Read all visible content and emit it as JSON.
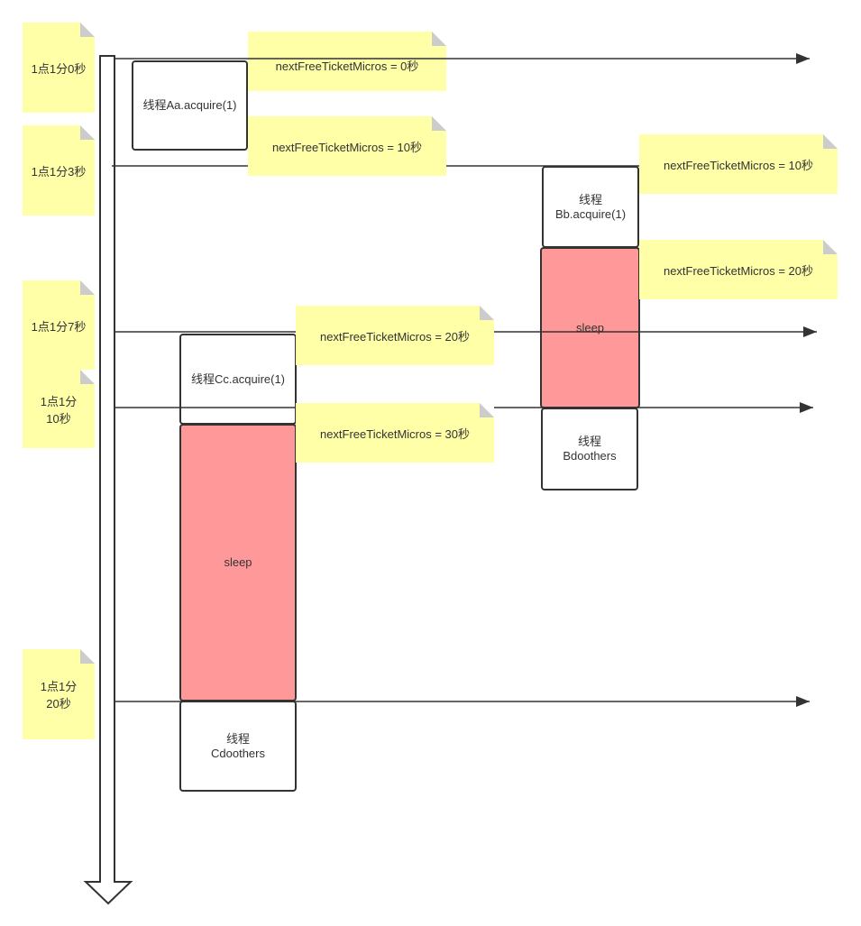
{
  "time_labels": [
    "1点1分0秒",
    "1点1分3秒",
    "1点1分7秒",
    "1点1分10秒",
    "1点1分20秒"
  ],
  "value_notes": [
    "nextFreeTicketMicros = 0秒",
    "nextFreeTicketMicros = 10秒",
    "nextFreeTicketMicros = 10秒",
    "nextFreeTicketMicros = 20秒",
    "nextFreeTicketMicros = 20秒",
    "nextFreeTicketMicros = 30秒"
  ],
  "boxes": {
    "a_acquire": "线程Aa.acquire(1)",
    "b_acquire": "线程Bb.acquire(1)",
    "b_sleep": "sleep",
    "b_others": "线程Bdoothers",
    "c_acquire": "线程Cc.acquire(1)",
    "c_sleep": "sleep",
    "c_others": "线程Cdoothers"
  },
  "colors": {
    "note": "#ffffa8",
    "sleep": "#ff9999",
    "line": "#333333"
  }
}
